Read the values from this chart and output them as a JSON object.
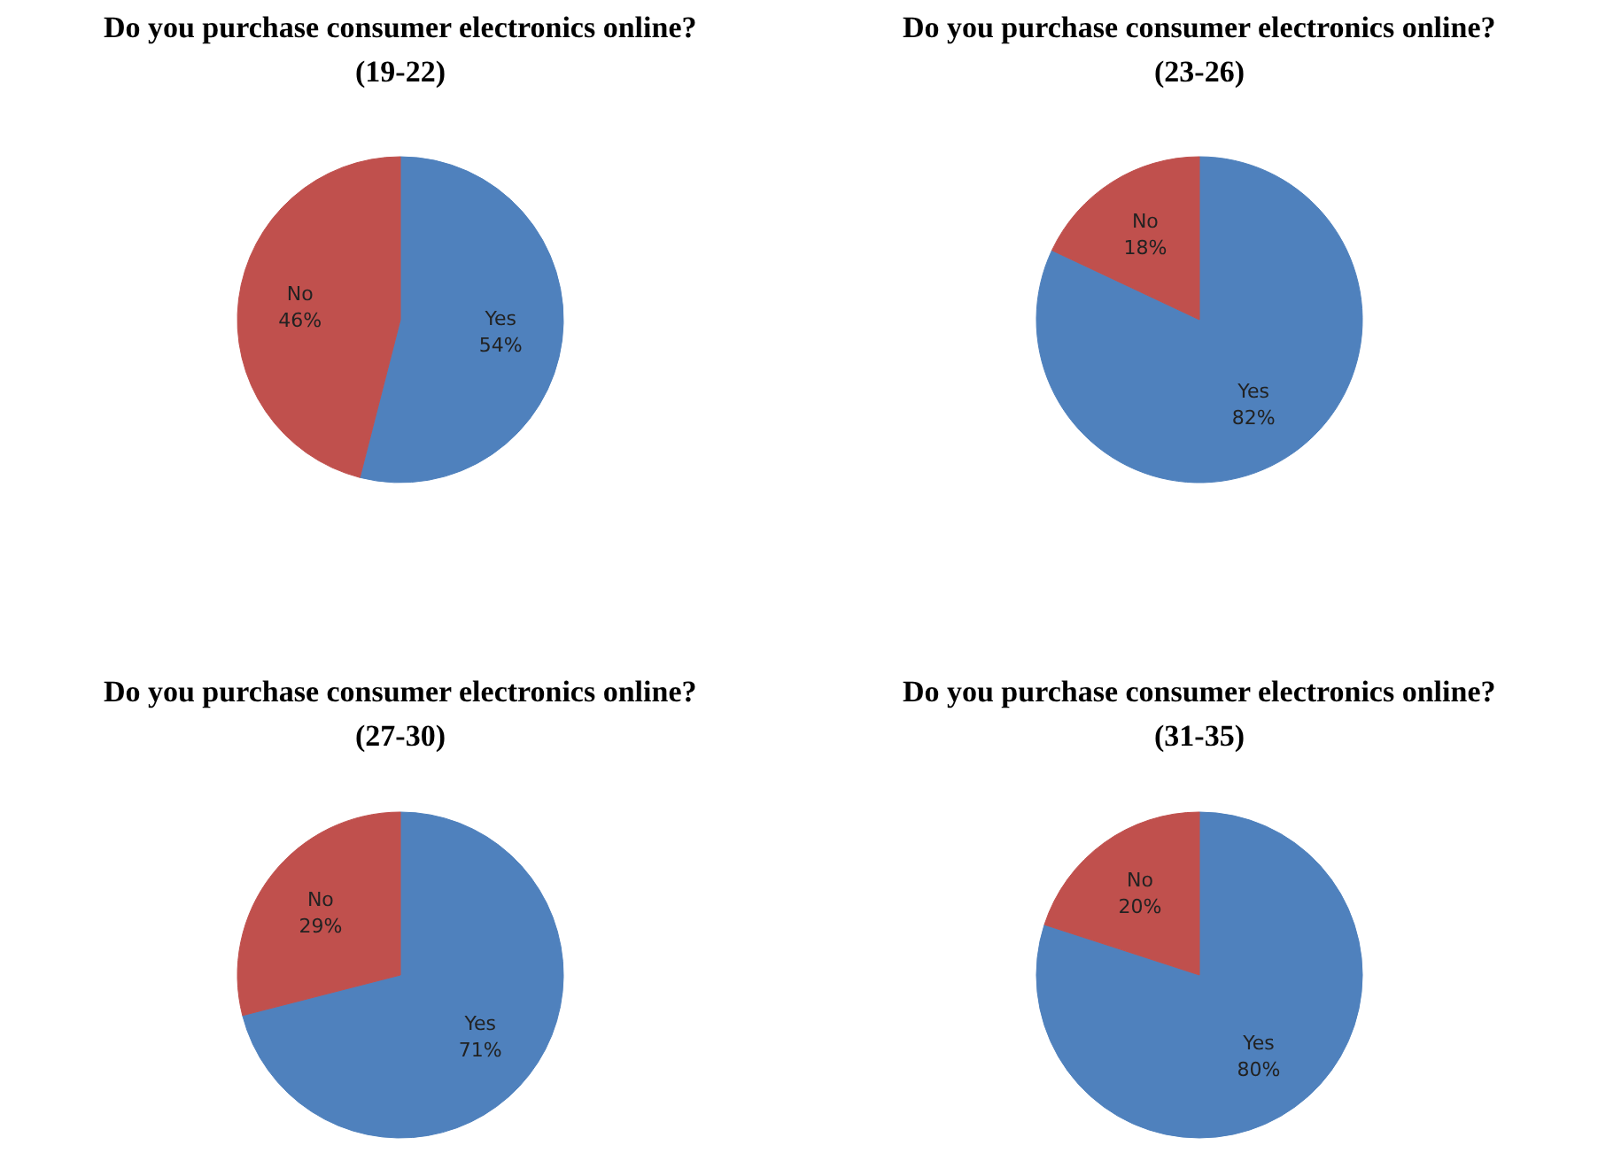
{
  "chart_data": [
    {
      "type": "pie",
      "title": "Do you purchase consumer electronics online?",
      "subtitle": "(19-22)",
      "categories": [
        "Yes",
        "No"
      ],
      "values": [
        54,
        46
      ],
      "colors": [
        "#4f81bd",
        "#c0504d"
      ],
      "value_labels": [
        "54%",
        "46%"
      ]
    },
    {
      "type": "pie",
      "title": "Do you purchase consumer electronics online?",
      "subtitle": "(23-26)",
      "categories": [
        "Yes",
        "No"
      ],
      "values": [
        82,
        18
      ],
      "colors": [
        "#4f81bd",
        "#c0504d"
      ],
      "value_labels": [
        "82%",
        "18%"
      ]
    },
    {
      "type": "pie",
      "title": "Do you purchase consumer electronics online?",
      "subtitle": "(27-30)",
      "categories": [
        "Yes",
        "No"
      ],
      "values": [
        71,
        29
      ],
      "colors": [
        "#4f81bd",
        "#c0504d"
      ],
      "value_labels": [
        "71%",
        "29%"
      ]
    },
    {
      "type": "pie",
      "title": "Do you purchase consumer electronics online?",
      "subtitle": "(31-35)",
      "categories": [
        "Yes",
        "No"
      ],
      "values": [
        80,
        20
      ],
      "colors": [
        "#4f81bd",
        "#c0504d"
      ],
      "value_labels": [
        "80%",
        "20%"
      ]
    }
  ]
}
